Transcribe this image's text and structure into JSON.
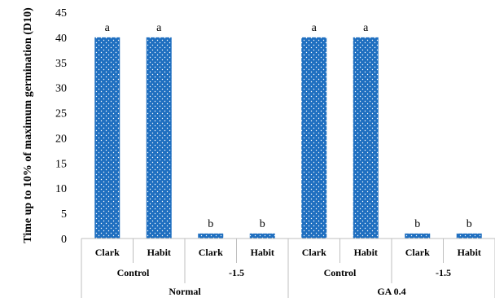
{
  "chart_data": {
    "type": "bar",
    "title": "",
    "ylabel": "Time up to 10% of maximum germination (D10)",
    "ylim": [
      0,
      45
    ],
    "yticks": [
      0,
      5,
      10,
      15,
      20,
      25,
      30,
      35,
      40,
      45
    ],
    "grid": false,
    "legend": "none",
    "bar_color": "#1f6fc0",
    "bar_pattern": "white dots",
    "categories": [
      {
        "cultivar": "Clark",
        "stress": "Control",
        "treatment": "Normal",
        "value": 40,
        "label": "a"
      },
      {
        "cultivar": "Habit",
        "stress": "Control",
        "treatment": "Normal",
        "value": 40,
        "label": "a"
      },
      {
        "cultivar": "Clark",
        "stress": "-1.5",
        "treatment": "Normal",
        "value": 1,
        "label": "b"
      },
      {
        "cultivar": "Habit",
        "stress": "-1.5",
        "treatment": "Normal",
        "value": 1,
        "label": "b"
      },
      {
        "cultivar": "Clark",
        "stress": "Control",
        "treatment": "GA 0.4",
        "value": 40,
        "label": "a"
      },
      {
        "cultivar": "Habit",
        "stress": "Control",
        "treatment": "GA 0.4",
        "value": 40,
        "label": "a"
      },
      {
        "cultivar": "Clark",
        "stress": "-1.5",
        "treatment": "GA 0.4",
        "value": 1,
        "label": "b"
      },
      {
        "cultivar": "Habit",
        "stress": "-1.5",
        "treatment": "GA 0.4",
        "value": 1,
        "label": "b"
      }
    ],
    "level2_groups": [
      "Control",
      "-1.5",
      "Control",
      "-1.5"
    ],
    "level3_groups": [
      "Normal",
      "GA 0.4"
    ]
  }
}
